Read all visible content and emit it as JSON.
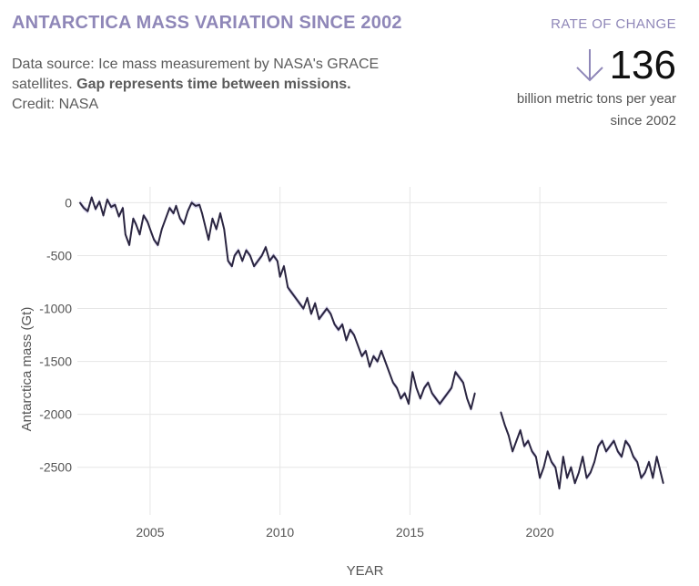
{
  "title": "ANTARCTICA MASS VARIATION SINCE 2002",
  "description": {
    "text": "Data source: Ice mass measurement by NASA's GRACE satellites.",
    "bold": "Gap represents time between missions.",
    "credit": "Credit: NASA"
  },
  "rate": {
    "label": "RATE OF CHANGE",
    "arrow_icon": "down-arrow-icon",
    "value": "136",
    "unit": "billion metric tons per year since 2002"
  },
  "colors": {
    "line": "#2a2540",
    "band": "#c6c0e6",
    "accent": "#8f87b8",
    "grid": "#e6e6e6"
  },
  "chart_data": {
    "type": "line",
    "title": "",
    "xlabel": "YEAR",
    "ylabel": "Antarctica mass (Gt)",
    "xlim": [
      2002.2,
      2024.9
    ],
    "ylim": [
      -2950,
      150
    ],
    "xticks": [
      2005,
      2010,
      2015,
      2020
    ],
    "yticks": [
      0,
      -500,
      -1000,
      -1500,
      -2000,
      -2500
    ],
    "grid": true,
    "series": [
      {
        "x": [
          2002.3,
          2002.45,
          2002.6,
          2002.75,
          2002.9,
          2003.05,
          2003.2,
          2003.35,
          2003.5,
          2003.65,
          2003.8,
          2003.95,
          2004.05,
          2004.2,
          2004.35,
          2004.45,
          2004.6,
          2004.75,
          2004.9,
          2005.0,
          2005.15,
          2005.3,
          2005.45,
          2005.6,
          2005.75,
          2005.9,
          2006.0,
          2006.15,
          2006.3,
          2006.45,
          2006.6,
          2006.75,
          2006.9,
          2007.0,
          2007.1,
          2007.25,
          2007.4,
          2007.55,
          2007.7,
          2007.85,
          2008.0,
          2008.15,
          2008.25,
          2008.4,
          2008.55,
          2008.7,
          2008.85,
          2009.0,
          2009.15,
          2009.3,
          2009.45,
          2009.6,
          2009.75,
          2009.9,
          2010.0,
          2010.15,
          2010.3,
          2010.45,
          2010.6,
          2010.75,
          2010.9,
          2011.05,
          2011.2,
          2011.35,
          2011.5,
          2011.65,
          2011.8,
          2011.95,
          2012.1,
          2012.25,
          2012.4,
          2012.55,
          2012.7,
          2012.85,
          2013.0,
          2013.15,
          2013.3,
          2013.45,
          2013.6,
          2013.75,
          2013.9,
          2014.05,
          2014.2,
          2014.35,
          2014.5,
          2014.65,
          2014.8,
          2014.95,
          2015.1,
          2015.25,
          2015.4,
          2015.55,
          2015.7,
          2015.85,
          2016.0,
          2016.15,
          2016.3,
          2016.45,
          2016.6,
          2016.75,
          2016.9,
          2017.05,
          2017.2,
          2017.35,
          2017.5
        ],
        "values": [
          0,
          -50,
          -80,
          50,
          -60,
          10,
          -120,
          30,
          -40,
          -20,
          -130,
          -50,
          -300,
          -400,
          -150,
          -200,
          -300,
          -120,
          -180,
          -250,
          -350,
          -400,
          -250,
          -150,
          -50,
          -100,
          -30,
          -150,
          -200,
          -80,
          0,
          -30,
          -20,
          -100,
          -200,
          -350,
          -150,
          -250,
          -100,
          -250,
          -550,
          -600,
          -500,
          -450,
          -550,
          -450,
          -500,
          -600,
          -550,
          -500,
          -420,
          -550,
          -500,
          -550,
          -700,
          -600,
          -800,
          -850,
          -900,
          -950,
          -1000,
          -900,
          -1050,
          -950,
          -1100,
          -1050,
          -1000,
          -1050,
          -1150,
          -1200,
          -1150,
          -1300,
          -1200,
          -1250,
          -1350,
          -1450,
          -1400,
          -1550,
          -1450,
          -1500,
          -1400,
          -1500,
          -1600,
          -1700,
          -1750,
          -1850,
          -1800,
          -1900,
          -1600,
          -1750,
          -1850,
          -1750,
          -1700,
          -1800,
          -1850,
          -1900,
          -1850,
          -1800,
          -1750,
          -1600,
          -1650,
          -1700,
          -1850,
          -1950,
          -1800
        ]
      },
      {
        "x": [
          2018.5,
          2018.65,
          2018.8,
          2018.95,
          2019.1,
          2019.25,
          2019.4,
          2019.55,
          2019.7,
          2019.85,
          2020.0,
          2020.15,
          2020.3,
          2020.45,
          2020.6,
          2020.75,
          2020.9,
          2021.05,
          2021.2,
          2021.35,
          2021.5,
          2021.65,
          2021.8,
          2021.95,
          2022.1,
          2022.25,
          2022.4,
          2022.55,
          2022.7,
          2022.85,
          2023.0,
          2023.15,
          2023.3,
          2023.45,
          2023.6,
          2023.75,
          2023.9,
          2024.05,
          2024.2,
          2024.35,
          2024.5,
          2024.65,
          2024.75
        ],
        "values": [
          -1980,
          -2100,
          -2200,
          -2350,
          -2250,
          -2150,
          -2300,
          -2250,
          -2350,
          -2400,
          -2600,
          -2500,
          -2350,
          -2450,
          -2500,
          -2700,
          -2400,
          -2600,
          -2500,
          -2650,
          -2550,
          -2400,
          -2600,
          -2550,
          -2450,
          -2300,
          -2250,
          -2350,
          -2300,
          -2250,
          -2350,
          -2400,
          -2250,
          -2300,
          -2400,
          -2450,
          -2600,
          -2550,
          -2450,
          -2600,
          -2400,
          -2550,
          -2650
        ]
      }
    ]
  }
}
